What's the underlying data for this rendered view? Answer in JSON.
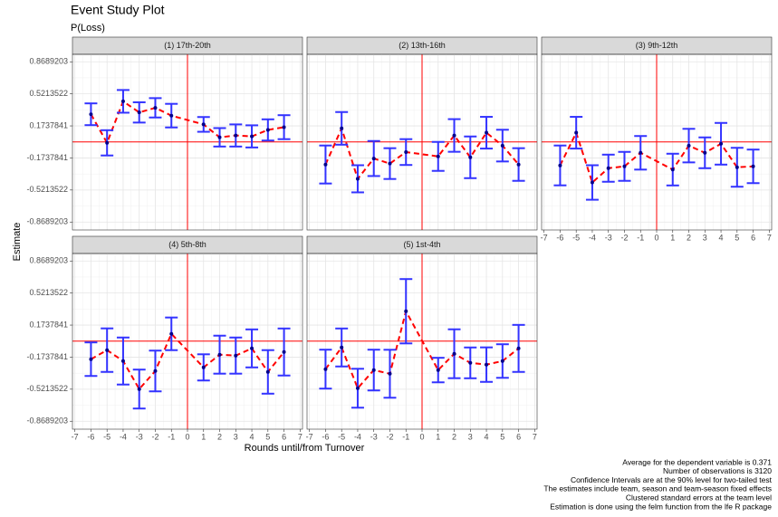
{
  "title": "Event Study Plot",
  "subtitle": "P(Loss)",
  "x_label": "Rounds until/from Turnover",
  "y_label": "Estimate",
  "caption": [
    "Average for the dependent variable is 0.371",
    "Number of observations is 3120",
    "Confidence Intervals are at the 90% level for two-tailed test",
    "The estimates include team, season and team-season fixed effects",
    "Clustered standard errors at the team level",
    "Estimation is done using the felm function from the lfe R package"
  ],
  "chart_data": [
    {
      "type": "errorbar",
      "title": "(1) 17th-20th",
      "x": [
        -6,
        -5,
        -4,
        -3,
        -2,
        -1,
        1,
        2,
        3,
        4,
        5,
        6
      ],
      "values": [
        0.3,
        -0.01,
        0.44,
        0.32,
        0.37,
        0.285,
        0.19,
        0.05,
        0.07,
        0.06,
        0.13,
        0.16
      ],
      "errors": [
        0.118,
        0.137,
        0.123,
        0.11,
        0.105,
        0.128,
        0.08,
        0.1,
        0.12,
        0.12,
        0.115,
        0.13
      ],
      "xlim": [
        -7.15,
        7.15
      ],
      "ylim": [
        -0.955,
        0.95
      ],
      "xticks": [
        -7,
        -6,
        -5,
        -4,
        -3,
        -2,
        -1,
        0,
        1,
        2,
        3,
        4,
        5,
        6,
        7
      ],
      "yticks": [
        -0.8689203,
        -0.5213522,
        -0.1737841,
        0.1737841,
        0.5213522,
        0.8689203
      ],
      "hline": 0,
      "vline": 0,
      "line_color": "#ff0000",
      "errorbar_color": "#3333ff",
      "point_color": "#00008b",
      "grid": true
    },
    {
      "type": "errorbar",
      "title": "(2) 13th-16th",
      "x": [
        -6,
        -5,
        -4,
        -3,
        -2,
        -1,
        1,
        2,
        3,
        4,
        5,
        6
      ],
      "values": [
        -0.245,
        0.147,
        -0.4,
        -0.18,
        -0.235,
        -0.11,
        -0.157,
        0.07,
        -0.167,
        0.1,
        -0.04,
        -0.245
      ],
      "errors": [
        0.206,
        0.177,
        0.147,
        0.19,
        0.167,
        0.14,
        0.157,
        0.177,
        0.226,
        0.172,
        0.172,
        0.177
      ],
      "xlim": [
        -7.15,
        7.15
      ],
      "ylim": [
        -0.955,
        0.95
      ],
      "xticks": [
        -7,
        -6,
        -5,
        -4,
        -3,
        -2,
        -1,
        0,
        1,
        2,
        3,
        4,
        5,
        6,
        7
      ],
      "yticks": [
        -0.8689203,
        -0.5213522,
        -0.1737841,
        0.1737841,
        0.5213522,
        0.8689203
      ],
      "hline": 0,
      "vline": 0,
      "line_color": "#ff0000",
      "errorbar_color": "#3333ff",
      "point_color": "#00008b",
      "grid": true
    },
    {
      "type": "errorbar",
      "title": "(3) 9th-12th",
      "x": [
        -6,
        -5,
        -4,
        -3,
        -2,
        -1,
        1,
        2,
        3,
        4,
        5,
        6
      ],
      "values": [
        -0.255,
        0.1,
        -0.44,
        -0.285,
        -0.265,
        -0.118,
        -0.3,
        -0.04,
        -0.118,
        -0.02,
        -0.275,
        -0.265
      ],
      "errors": [
        0.216,
        0.172,
        0.187,
        0.147,
        0.157,
        0.182,
        0.172,
        0.182,
        0.167,
        0.226,
        0.211,
        0.182
      ],
      "xlim": [
        -7.15,
        7.15
      ],
      "ylim": [
        -0.955,
        0.95
      ],
      "xticks": [
        -7,
        -6,
        -5,
        -4,
        -3,
        -2,
        -1,
        0,
        1,
        2,
        3,
        4,
        5,
        6,
        7
      ],
      "yticks": [
        -0.8689203,
        -0.5213522,
        -0.1737841,
        0.1737841,
        0.5213522,
        0.8689203
      ],
      "hline": 0,
      "vline": 0,
      "line_color": "#ff0000",
      "errorbar_color": "#3333ff",
      "point_color": "#00008b",
      "grid": true
    },
    {
      "type": "errorbar",
      "title": "(4) 5th-8th",
      "x": [
        -6,
        -5,
        -4,
        -3,
        -2,
        -1,
        1,
        2,
        3,
        4,
        5,
        6
      ],
      "values": [
        -0.196,
        -0.098,
        -0.216,
        -0.52,
        -0.324,
        0.079,
        -0.285,
        -0.147,
        -0.157,
        -0.079,
        -0.334,
        -0.118
      ],
      "errors": [
        0.182,
        0.236,
        0.255,
        0.211,
        0.221,
        0.177,
        0.142,
        0.206,
        0.196,
        0.206,
        0.236,
        0.255
      ],
      "xlim": [
        -7.15,
        7.15
      ],
      "ylim": [
        -0.955,
        0.95
      ],
      "xticks": [
        -7,
        -6,
        -5,
        -4,
        -3,
        -2,
        -1,
        0,
        1,
        2,
        3,
        4,
        5,
        6,
        7
      ],
      "yticks": [
        -0.8689203,
        -0.5213522,
        -0.1737841,
        0.1737841,
        0.5213522,
        0.8689203
      ],
      "hline": 0,
      "vline": 0,
      "line_color": "#ff0000",
      "errorbar_color": "#3333ff",
      "point_color": "#00008b",
      "grid": true
    },
    {
      "type": "errorbar",
      "title": "(5) 1st-4th",
      "x": [
        -6,
        -5,
        -4,
        -3,
        -2,
        -1,
        1,
        2,
        3,
        4,
        5,
        6
      ],
      "values": [
        -0.304,
        -0.069,
        -0.511,
        -0.314,
        -0.354,
        0.324,
        -0.314,
        -0.137,
        -0.236,
        -0.255,
        -0.216,
        -0.079
      ],
      "errors": [
        0.211,
        0.206,
        0.211,
        0.221,
        0.26,
        0.349,
        0.133,
        0.265,
        0.167,
        0.187,
        0.182,
        0.255
      ],
      "xlim": [
        -7.15,
        7.15
      ],
      "ylim": [
        -0.955,
        0.95
      ],
      "xticks": [
        -7,
        -6,
        -5,
        -4,
        -3,
        -2,
        -1,
        0,
        1,
        2,
        3,
        4,
        5,
        6,
        7
      ],
      "yticks": [
        -0.8689203,
        -0.5213522,
        -0.1737841,
        0.1737841,
        0.5213522,
        0.8689203
      ],
      "hline": 0,
      "vline": 0,
      "line_color": "#ff0000",
      "errorbar_color": "#3333ff",
      "point_color": "#00008b",
      "grid": true
    }
  ]
}
